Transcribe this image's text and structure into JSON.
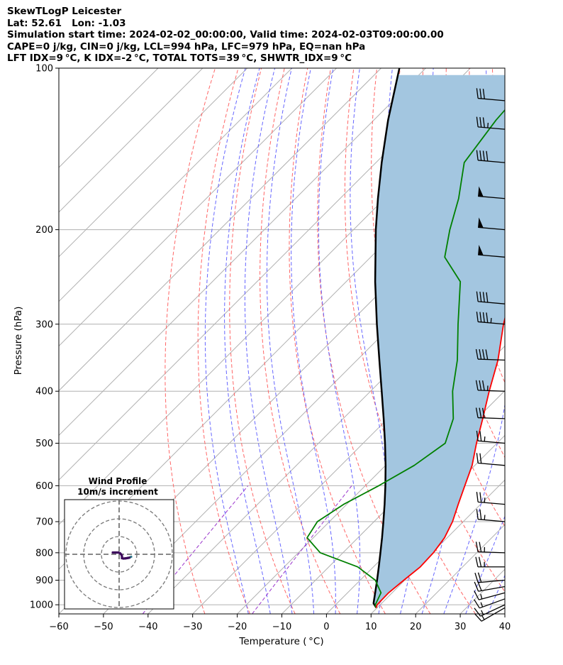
{
  "header": {
    "line1": "SkewTLogP Leicester",
    "line2": "Lat: 52.61   Lon: -1.03",
    "line3": "Simulation start time: 2024-02-02_00:00:00, Valid time: 2024-02-03T09:00:00.00",
    "line4": "CAPE=0 j/kg, CIN=0 j/kg, LCL=994 hPa, LFC=979 hPa, EQ=nan hPa",
    "line5": "LFT IDX=9 °C, K IDX=-2 °C, TOTAL TOTS=39 °C, SHWTR_IDX=9 °C"
  },
  "colors": {
    "temperature": "#ff0000",
    "dewpoint": "#008000",
    "parcel": "#000000",
    "cape_fill": "#a3c6e0",
    "dry_adiabat": "#ff6666",
    "moist_adiabat": "#6666ff",
    "mixing_ratio": "#9933cc",
    "isotherm": "#b0b0b0",
    "hodograph_low": "#3d0a5c",
    "hodograph_high": "#2a7a8c"
  },
  "chart_data": {
    "type": "skew-t",
    "xlabel": "Temperature ( °C)",
    "ylabel": "Pressure (hPa)",
    "xlim": [
      -60,
      40
    ],
    "ylim": [
      1040,
      100
    ],
    "x_ticks": [
      "−60",
      "−50",
      "−40",
      "−30",
      "−20",
      "−10",
      "0",
      "10",
      "20",
      "30",
      "40"
    ],
    "y_ticks": [
      {
        "p": 100,
        "label": "100"
      },
      {
        "p": 200,
        "label": "200"
      },
      {
        "p": 300,
        "label": "300"
      },
      {
        "p": 400,
        "label": "400"
      },
      {
        "p": 500,
        "label": "500"
      },
      {
        "p": 600,
        "label": "600"
      },
      {
        "p": 700,
        "label": "700"
      },
      {
        "p": 800,
        "label": "800"
      },
      {
        "p": 900,
        "label": "900"
      },
      {
        "p": 1000,
        "label": "1000"
      }
    ],
    "temperature": [
      {
        "p": 1013,
        "t": 9.8
      },
      {
        "p": 1000,
        "t": 9.3
      },
      {
        "p": 950,
        "t": 9.2
      },
      {
        "p": 900,
        "t": 9.8
      },
      {
        "p": 850,
        "t": 10.5
      },
      {
        "p": 800,
        "t": 10.3
      },
      {
        "p": 750,
        "t": 9.4
      },
      {
        "p": 700,
        "t": 7.6
      },
      {
        "p": 650,
        "t": 5.0
      },
      {
        "p": 600,
        "t": 2.3
      },
      {
        "p": 550,
        "t": -0.6
      },
      {
        "p": 500,
        "t": -4.6
      },
      {
        "p": 450,
        "t": -8.7
      },
      {
        "p": 400,
        "t": -13.4
      },
      {
        "p": 350,
        "t": -18.4
      },
      {
        "p": 300,
        "t": -25.2
      },
      {
        "p": 250,
        "t": -32.4
      },
      {
        "p": 225,
        "t": -37.5
      },
      {
        "p": 200,
        "t": -42.0
      },
      {
        "p": 175,
        "t": -43.6
      },
      {
        "p": 150,
        "t": -46.3
      },
      {
        "p": 125,
        "t": -48.2
      },
      {
        "p": 100,
        "t": -55.4
      }
    ],
    "dewpoint": [
      {
        "p": 1013,
        "t": 9.7
      },
      {
        "p": 1000,
        "t": 8.9
      },
      {
        "p": 950,
        "t": 7.5
      },
      {
        "p": 900,
        "t": 3.4
      },
      {
        "p": 850,
        "t": -3.5
      },
      {
        "p": 800,
        "t": -15.1
      },
      {
        "p": 750,
        "t": -21.4
      },
      {
        "p": 700,
        "t": -22.7
      },
      {
        "p": 650,
        "t": -20.7
      },
      {
        "p": 600,
        "t": -17.0
      },
      {
        "p": 550,
        "t": -13.6
      },
      {
        "p": 500,
        "t": -11.6
      },
      {
        "p": 450,
        "t": -15.3
      },
      {
        "p": 400,
        "t": -21.6
      },
      {
        "p": 350,
        "t": -27.5
      },
      {
        "p": 300,
        "t": -35.4
      },
      {
        "p": 250,
        "t": -44.4
      },
      {
        "p": 225,
        "t": -53.4
      },
      {
        "p": 200,
        "t": -58.4
      },
      {
        "p": 175,
        "t": -63.4
      },
      {
        "p": 150,
        "t": -70.2
      },
      {
        "p": 125,
        "t": -72.6
      },
      {
        "p": 100,
        "t": -74.0
      }
    ],
    "parcel": [
      {
        "p": 1013,
        "t": 9.8
      },
      {
        "p": 994,
        "t": 8.2
      },
      {
        "p": 950,
        "t": 6.2
      },
      {
        "p": 900,
        "t": 3.8
      },
      {
        "p": 850,
        "t": 1.2
      },
      {
        "p": 800,
        "t": -1.6
      },
      {
        "p": 750,
        "t": -4.6
      },
      {
        "p": 700,
        "t": -7.9
      },
      {
        "p": 650,
        "t": -11.5
      },
      {
        "p": 600,
        "t": -15.5
      },
      {
        "p": 550,
        "t": -20.0
      },
      {
        "p": 500,
        "t": -25.1
      },
      {
        "p": 450,
        "t": -30.9
      },
      {
        "p": 400,
        "t": -37.5
      },
      {
        "p": 350,
        "t": -45.0
      },
      {
        "p": 300,
        "t": -53.6
      },
      {
        "p": 250,
        "t": -63.5
      },
      {
        "p": 200,
        "t": -75.0
      },
      {
        "p": 175,
        "t": -81.5
      },
      {
        "p": 150,
        "t": -88.7
      },
      {
        "p": 125,
        "t": -96.8
      },
      {
        "p": 100,
        "t": -105.9
      }
    ],
    "wind_barbs": [
      {
        "p": 1013,
        "speed_kt": 15,
        "dir_deg": 240
      },
      {
        "p": 1000,
        "speed_kt": 15,
        "dir_deg": 245
      },
      {
        "p": 975,
        "speed_kt": 15,
        "dir_deg": 250
      },
      {
        "p": 950,
        "speed_kt": 15,
        "dir_deg": 255
      },
      {
        "p": 925,
        "speed_kt": 20,
        "dir_deg": 260
      },
      {
        "p": 900,
        "speed_kt": 20,
        "dir_deg": 265
      },
      {
        "p": 850,
        "speed_kt": 25,
        "dir_deg": 270
      },
      {
        "p": 800,
        "speed_kt": 25,
        "dir_deg": 272
      },
      {
        "p": 700,
        "speed_kt": 25,
        "dir_deg": 275
      },
      {
        "p": 650,
        "speed_kt": 25,
        "dir_deg": 275
      },
      {
        "p": 550,
        "speed_kt": 20,
        "dir_deg": 275
      },
      {
        "p": 500,
        "speed_kt": 25,
        "dir_deg": 275
      },
      {
        "p": 450,
        "speed_kt": 30,
        "dir_deg": 272
      },
      {
        "p": 400,
        "speed_kt": 35,
        "dir_deg": 272
      },
      {
        "p": 350,
        "speed_kt": 40,
        "dir_deg": 272
      },
      {
        "p": 300,
        "speed_kt": 45,
        "dir_deg": 275
      },
      {
        "p": 275,
        "speed_kt": 40,
        "dir_deg": 275
      },
      {
        "p": 225,
        "speed_kt": 50,
        "dir_deg": 275
      },
      {
        "p": 200,
        "speed_kt": 50,
        "dir_deg": 275
      },
      {
        "p": 175,
        "speed_kt": 50,
        "dir_deg": 275
      },
      {
        "p": 150,
        "speed_kt": 40,
        "dir_deg": 275
      },
      {
        "p": 130,
        "speed_kt": 35,
        "dir_deg": 275
      },
      {
        "p": 115,
        "speed_kt": 30,
        "dir_deg": 275
      }
    ],
    "hodograph": {
      "title": "Wind Profile",
      "subtitle": "10m/s increment",
      "rings_ms": [
        10,
        20,
        30
      ],
      "points_ms": [
        {
          "u": 6.8,
          "v": -1.4
        },
        {
          "u": 6.4,
          "v": -1.6
        },
        {
          "u": 5.8,
          "v": -1.9
        },
        {
          "u": 4.8,
          "v": -2.1
        },
        {
          "u": 3.6,
          "v": -2.3
        },
        {
          "u": 2.4,
          "v": -2.4
        },
        {
          "u": 1.6,
          "v": -2.2
        },
        {
          "u": 1.6,
          "v": -1.0
        },
        {
          "u": 1.2,
          "v": -0.1
        },
        {
          "u": 0.5,
          "v": 0.6
        },
        {
          "u": -0.6,
          "v": 1.0
        },
        {
          "u": -2.0,
          "v": 1.0
        },
        {
          "u": -3.6,
          "v": 1.0
        }
      ]
    }
  }
}
